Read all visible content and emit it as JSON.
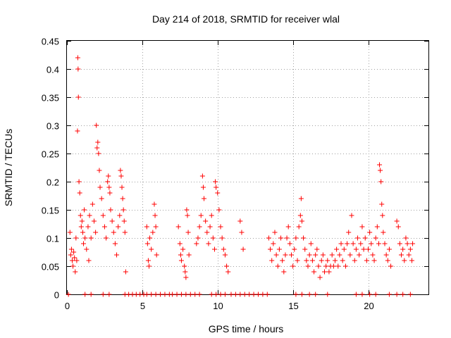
{
  "chart_data": {
    "type": "scatter",
    "title": "Day 214 of 2018, SRMTID for receiver wlal",
    "xlabel": "GPS time / hours",
    "ylabel": "SRMTID / TECUs",
    "xlim": [
      0,
      24
    ],
    "ylim": [
      0,
      0.45
    ],
    "xticks": [
      0,
      5,
      10,
      15,
      20
    ],
    "xtick_labels": [
      "0",
      "5",
      "10",
      "15",
      "20"
    ],
    "yticks": [
      0,
      0.05,
      0.1,
      0.15,
      0.2,
      0.25,
      0.3,
      0.35,
      0.4,
      0.45
    ],
    "ytick_labels": [
      "0",
      "0.05",
      "0.1",
      "0.15",
      "0.2",
      "0.25",
      "0.3",
      "0.35",
      "0.4",
      "0.45"
    ],
    "grid": true,
    "marker": "+",
    "color": "#ff0000",
    "series": [
      {
        "name": "SRMTID",
        "points": [
          [
            0.2,
            0.11
          ],
          [
            0.25,
            0.07
          ],
          [
            0.3,
            0.08
          ],
          [
            0.35,
            0.06
          ],
          [
            0.4,
            0.05
          ],
          [
            0.45,
            0.075
          ],
          [
            0.5,
            0.065
          ],
          [
            0.55,
            0.04
          ],
          [
            0.6,
            0.1
          ],
          [
            0.65,
            0.06
          ],
          [
            0.7,
            0.29
          ],
          [
            0.72,
            0.42
          ],
          [
            0.74,
            0.4
          ],
          [
            0.76,
            0.35
          ],
          [
            0.8,
            0.2
          ],
          [
            0.85,
            0.18
          ],
          [
            0.9,
            0.14
          ],
          [
            0.95,
            0.12
          ],
          [
            1.0,
            0.13
          ],
          [
            1.05,
            0.11
          ],
          [
            1.1,
            0.09
          ],
          [
            1.15,
            0.15
          ],
          [
            1.2,
            0.1
          ],
          [
            1.3,
            0.08
          ],
          [
            1.4,
            0.12
          ],
          [
            1.45,
            0.06
          ],
          [
            1.5,
            0.14
          ],
          [
            1.6,
            0.1
          ],
          [
            1.7,
            0.16
          ],
          [
            1.8,
            0.13
          ],
          [
            1.9,
            0.11
          ],
          [
            1.95,
            0.3
          ],
          [
            2.0,
            0.26
          ],
          [
            2.05,
            0.27
          ],
          [
            2.1,
            0.25
          ],
          [
            2.15,
            0.22
          ],
          [
            2.2,
            0.19
          ],
          [
            2.3,
            0.17
          ],
          [
            2.4,
            0.14
          ],
          [
            2.5,
            0.12
          ],
          [
            2.6,
            0.1
          ],
          [
            2.7,
            0.2
          ],
          [
            2.75,
            0.21
          ],
          [
            2.8,
            0.19
          ],
          [
            2.85,
            0.18
          ],
          [
            2.9,
            0.15
          ],
          [
            3.0,
            0.13
          ],
          [
            3.1,
            0.11
          ],
          [
            3.2,
            0.09
          ],
          [
            3.3,
            0.07
          ],
          [
            3.4,
            0.12
          ],
          [
            3.5,
            0.14
          ],
          [
            3.55,
            0.22
          ],
          [
            3.6,
            0.21
          ],
          [
            3.65,
            0.19
          ],
          [
            3.7,
            0.17
          ],
          [
            3.75,
            0.15
          ],
          [
            3.8,
            0.13
          ],
          [
            3.85,
            0.11
          ],
          [
            3.9,
            0.04
          ],
          [
            5.3,
            0.12
          ],
          [
            5.35,
            0.09
          ],
          [
            5.4,
            0.06
          ],
          [
            5.45,
            0.05
          ],
          [
            5.5,
            0.1
          ],
          [
            5.6,
            0.08
          ],
          [
            5.7,
            0.11
          ],
          [
            5.8,
            0.16
          ],
          [
            5.85,
            0.14
          ],
          [
            5.9,
            0.12
          ],
          [
            5.95,
            0.07
          ],
          [
            7.4,
            0.12
          ],
          [
            7.5,
            0.09
          ],
          [
            7.55,
            0.07
          ],
          [
            7.6,
            0.06
          ],
          [
            7.7,
            0.08
          ],
          [
            7.8,
            0.05
          ],
          [
            7.85,
            0.04
          ],
          [
            7.9,
            0.03
          ],
          [
            7.95,
            0.15
          ],
          [
            8.0,
            0.14
          ],
          [
            8.05,
            0.11
          ],
          [
            8.1,
            0.07
          ],
          [
            8.6,
            0.09
          ],
          [
            8.7,
            0.1
          ],
          [
            8.8,
            0.12
          ],
          [
            8.9,
            0.14
          ],
          [
            9.0,
            0.21
          ],
          [
            9.05,
            0.19
          ],
          [
            9.1,
            0.17
          ],
          [
            9.2,
            0.13
          ],
          [
            9.3,
            0.11
          ],
          [
            9.4,
            0.09
          ],
          [
            9.5,
            0.12
          ],
          [
            9.6,
            0.14
          ],
          [
            9.7,
            0.1
          ],
          [
            9.8,
            0.08
          ],
          [
            9.85,
            0.2
          ],
          [
            9.9,
            0.19
          ],
          [
            10.0,
            0.18
          ],
          [
            10.1,
            0.15
          ],
          [
            10.2,
            0.12
          ],
          [
            10.3,
            0.1
          ],
          [
            10.4,
            0.08
          ],
          [
            10.5,
            0.07
          ],
          [
            10.6,
            0.05
          ],
          [
            10.7,
            0.04
          ],
          [
            11.5,
            0.13
          ],
          [
            11.6,
            0.11
          ],
          [
            11.7,
            0.08
          ],
          [
            13.4,
            0.1
          ],
          [
            13.5,
            0.08
          ],
          [
            13.6,
            0.06
          ],
          [
            13.7,
            0.09
          ],
          [
            13.8,
            0.11
          ],
          [
            13.9,
            0.07
          ],
          [
            14.0,
            0.05
          ],
          [
            14.1,
            0.08
          ],
          [
            14.2,
            0.1
          ],
          [
            14.3,
            0.06
          ],
          [
            14.4,
            0.04
          ],
          [
            14.5,
            0.07
          ],
          [
            14.6,
            0.1
          ],
          [
            14.7,
            0.12
          ],
          [
            14.8,
            0.09
          ],
          [
            14.9,
            0.07
          ],
          [
            15.0,
            0.05
          ],
          [
            15.1,
            0.08
          ],
          [
            15.2,
            0.1
          ],
          [
            15.3,
            0.06
          ],
          [
            15.4,
            0.12
          ],
          [
            15.5,
            0.14
          ],
          [
            15.55,
            0.17
          ],
          [
            15.6,
            0.13
          ],
          [
            15.7,
            0.1
          ],
          [
            15.8,
            0.08
          ],
          [
            15.9,
            0.06
          ],
          [
            16.0,
            0.05
          ],
          [
            16.1,
            0.07
          ],
          [
            16.2,
            0.09
          ],
          [
            16.3,
            0.06
          ],
          [
            16.4,
            0.04
          ],
          [
            16.5,
            0.07
          ],
          [
            16.6,
            0.08
          ],
          [
            16.7,
            0.05
          ],
          [
            16.8,
            0.03
          ],
          [
            16.9,
            0.06
          ],
          [
            17.0,
            0.07
          ],
          [
            17.1,
            0.04
          ],
          [
            17.2,
            0.05
          ],
          [
            17.3,
            0.06
          ],
          [
            17.4,
            0.04
          ],
          [
            17.5,
            0.05
          ],
          [
            17.6,
            0.07
          ],
          [
            17.7,
            0.05
          ],
          [
            17.8,
            0.06
          ],
          [
            17.9,
            0.08
          ],
          [
            18.0,
            0.05
          ],
          [
            18.1,
            0.07
          ],
          [
            18.2,
            0.09
          ],
          [
            18.3,
            0.06
          ],
          [
            18.4,
            0.08
          ],
          [
            18.5,
            0.05
          ],
          [
            18.6,
            0.09
          ],
          [
            18.7,
            0.11
          ],
          [
            18.8,
            0.07
          ],
          [
            18.9,
            0.14
          ],
          [
            19.0,
            0.09
          ],
          [
            19.1,
            0.06
          ],
          [
            19.2,
            0.08
          ],
          [
            19.3,
            0.1
          ],
          [
            19.4,
            0.07
          ],
          [
            19.5,
            0.09
          ],
          [
            19.6,
            0.12
          ],
          [
            19.7,
            0.08
          ],
          [
            19.8,
            0.1
          ],
          [
            19.9,
            0.06
          ],
          [
            20.0,
            0.08
          ],
          [
            20.1,
            0.11
          ],
          [
            20.2,
            0.09
          ],
          [
            20.3,
            0.07
          ],
          [
            20.4,
            0.06
          ],
          [
            20.5,
            0.1
          ],
          [
            20.6,
            0.12
          ],
          [
            20.7,
            0.09
          ],
          [
            20.75,
            0.23
          ],
          [
            20.8,
            0.22
          ],
          [
            20.85,
            0.2
          ],
          [
            20.9,
            0.16
          ],
          [
            20.95,
            0.14
          ],
          [
            21.0,
            0.11
          ],
          [
            21.1,
            0.09
          ],
          [
            21.2,
            0.07
          ],
          [
            21.3,
            0.06
          ],
          [
            21.4,
            0.08
          ],
          [
            21.5,
            0.05
          ],
          [
            21.9,
            0.13
          ],
          [
            22.0,
            0.12
          ],
          [
            22.1,
            0.09
          ],
          [
            22.2,
            0.07
          ],
          [
            22.3,
            0.08
          ],
          [
            22.4,
            0.06
          ],
          [
            22.5,
            0.1
          ],
          [
            22.6,
            0.09
          ],
          [
            22.7,
            0.07
          ],
          [
            22.8,
            0.08
          ],
          [
            22.9,
            0.06
          ],
          [
            22.95,
            0.09
          ]
        ]
      }
    ],
    "zero_markers": [
      0.1,
      1.2,
      1.6,
      2.4,
      2.8,
      3.85,
      4.1,
      4.35,
      4.6,
      4.85,
      5.1,
      5.3,
      5.6,
      5.9,
      6.2,
      6.5,
      6.8,
      7.0,
      7.3,
      7.6,
      7.9,
      8.2,
      8.5,
      8.8,
      9.6,
      9.9,
      10.2,
      10.5,
      10.9,
      11.2,
      11.5,
      11.8,
      12.1,
      12.4,
      12.7,
      13.0,
      13.3,
      15.2,
      15.6,
      16.1,
      16.5,
      17.3,
      19.2,
      19.6,
      20.1,
      20.5,
      21.4,
      21.9,
      22.3,
      22.8
    ]
  }
}
